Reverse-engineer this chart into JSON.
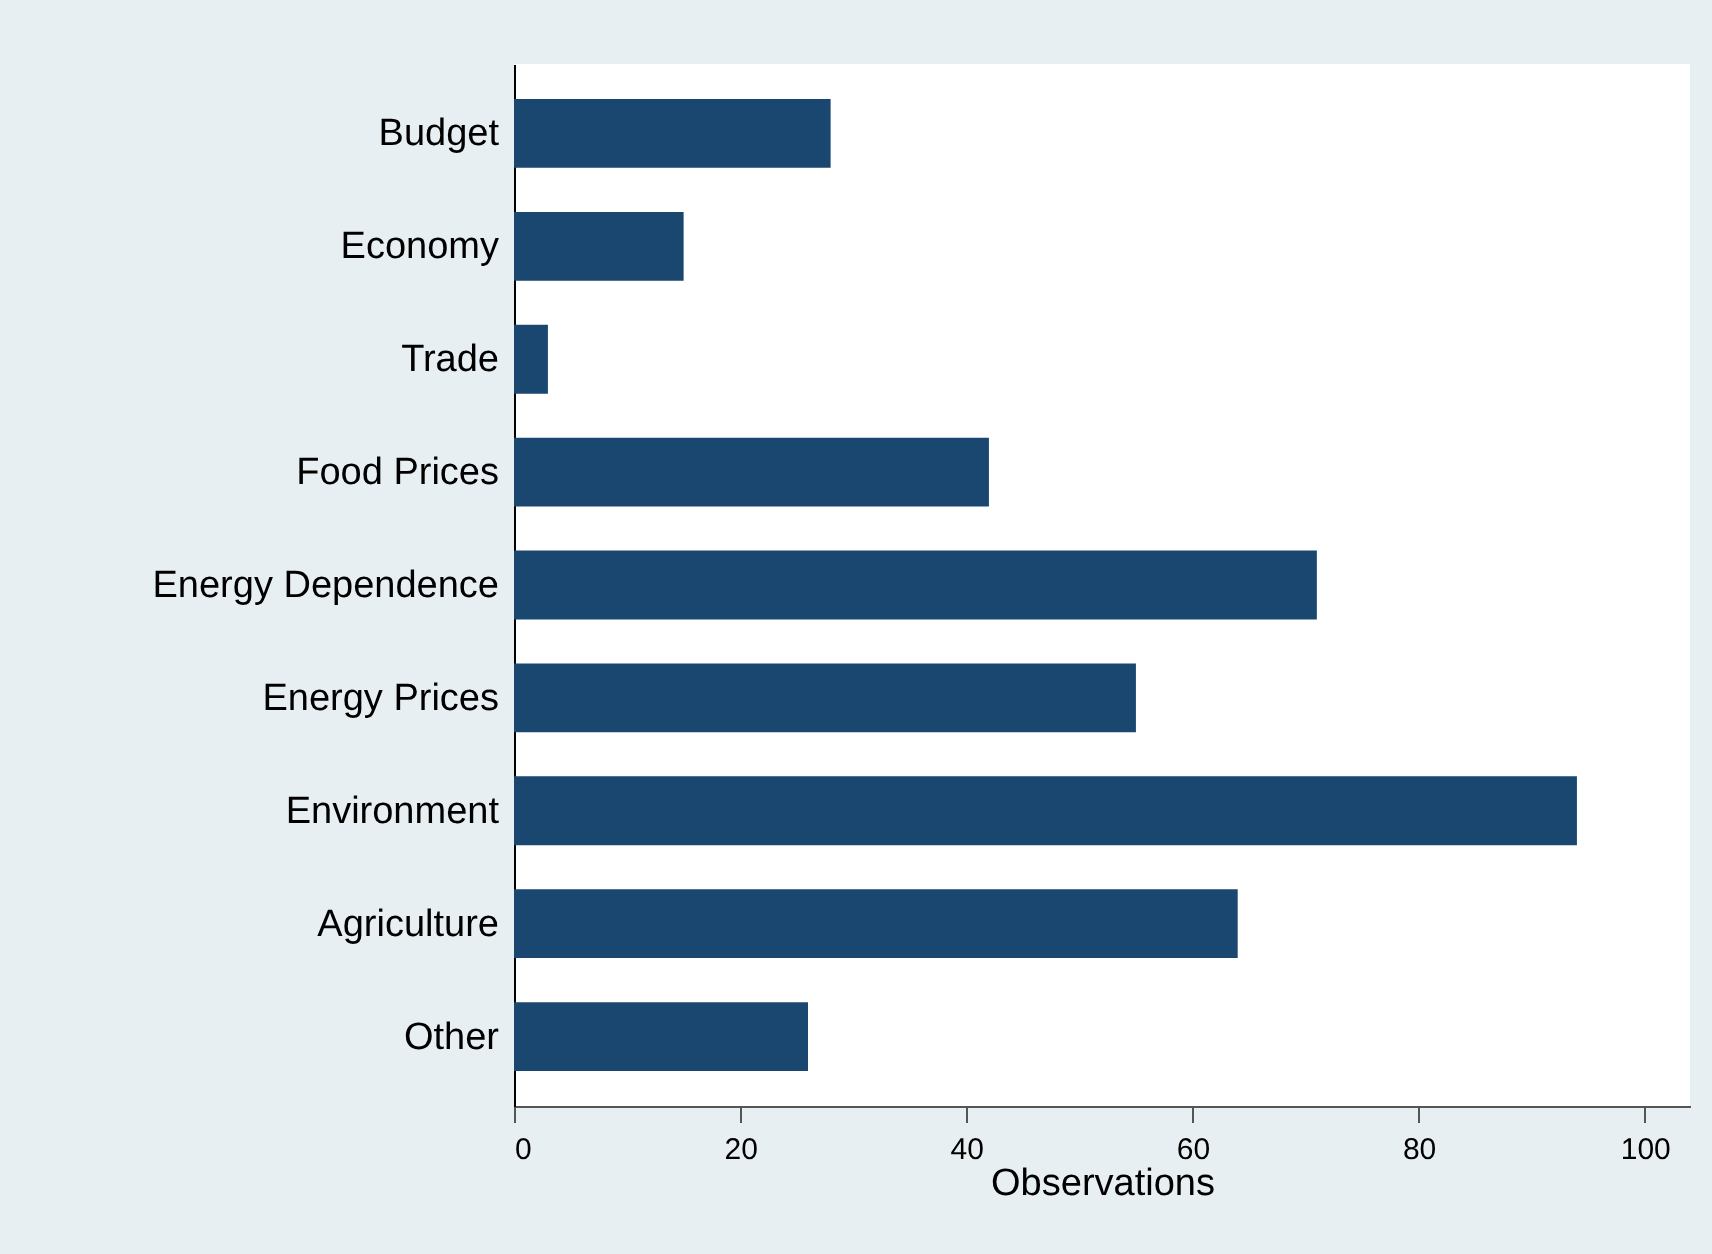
{
  "chart_data": {
    "type": "bar",
    "orientation": "horizontal",
    "xlabel": "Observations",
    "categories": [
      "Budget",
      "Economy",
      "Trade",
      "Food Prices",
      "Energy Dependence",
      "Energy Prices",
      "Environment",
      "Agriculture",
      "Other"
    ],
    "values": [
      28,
      15,
      3,
      42,
      71,
      55,
      94,
      64,
      26
    ],
    "color": "#1a476f",
    "xlim": [
      0,
      104
    ],
    "xticks": [
      0,
      20,
      40,
      60,
      80,
      100
    ],
    "grid": false
  }
}
